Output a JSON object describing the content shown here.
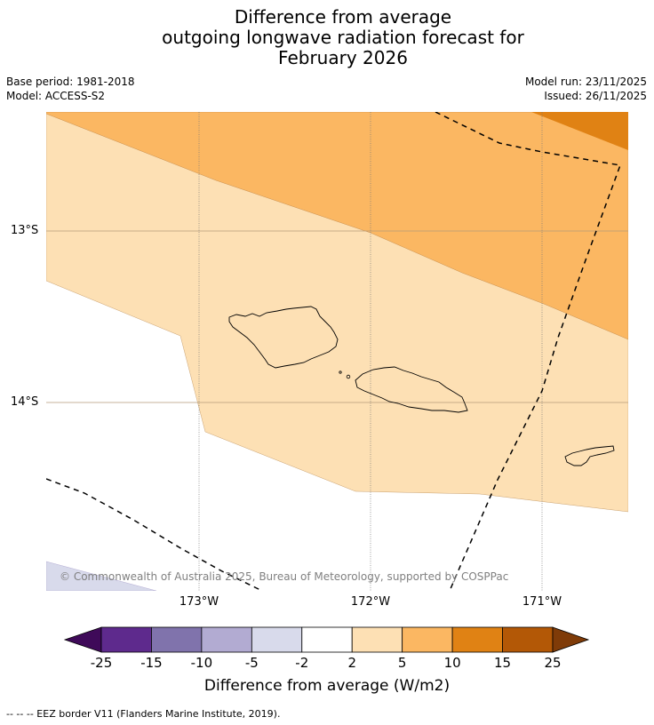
{
  "title": {
    "line1": "Difference from average",
    "line2": "outgoing longwave radiation forecast for",
    "line3": "February 2026"
  },
  "meta": {
    "base_period": "Base period: 1981-2018",
    "model": "Model: ACCESS-S2",
    "model_run": "Model run: 23/11/2025",
    "issued": "Issued: 26/11/2025"
  },
  "map": {
    "lat_labels": [
      "13°S",
      "14°S"
    ],
    "lon_labels": [
      "173°W",
      "172°W",
      "171°W"
    ],
    "copyright": "© Commonwealth of Australia 2025, Bureau of Meteorology, supported by COSPPac",
    "colors": {
      "band_2_5": "#fde0b4",
      "band_5_10": "#fbb762",
      "band_10_15": "#e08214",
      "band_neg5_neg2": "#d8daeb"
    }
  },
  "colorbar": {
    "ticks": [
      "-25",
      "-15",
      "-10",
      "-5",
      "-2",
      "2",
      "5",
      "10",
      "15",
      "25"
    ],
    "colors": [
      "#3f0a59",
      "#5e2a8d",
      "#8073ac",
      "#b2abd2",
      "#d8daeb",
      "#ffffff",
      "#fde0b4",
      "#fbb762",
      "#e08214",
      "#b35806",
      "#7f3b08"
    ],
    "label": "Difference from average (W/m2)"
  },
  "footnote": "--  --  -- EEZ border V11 (Flanders Marine Institute, 2019)."
}
